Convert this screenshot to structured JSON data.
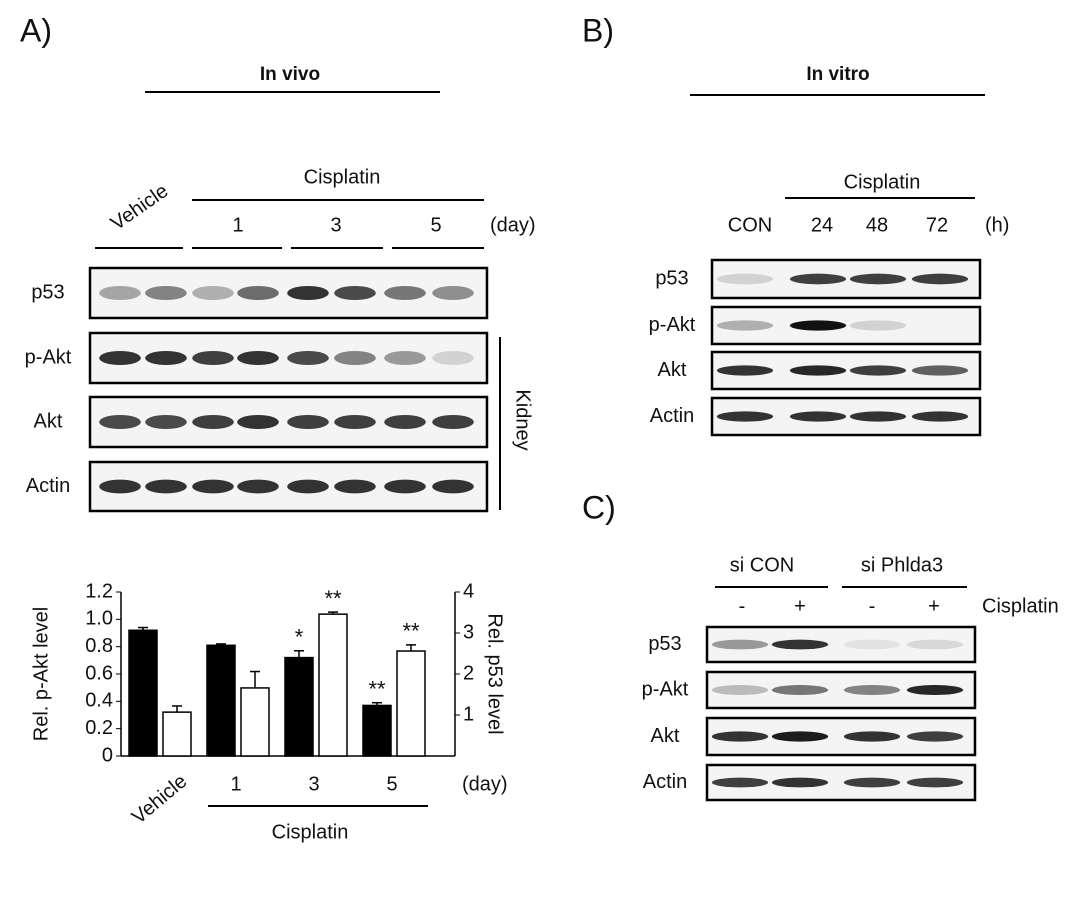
{
  "panels": {
    "a": {
      "label": "A)",
      "title": "In vivo",
      "control": "Vehicle",
      "treatment": "Cisplatin",
      "days": [
        "1",
        "3",
        "5"
      ],
      "unit": "(day)",
      "rows": [
        "p53",
        "p-Akt",
        "Akt",
        "Actin"
      ],
      "tissue": "Kidney"
    },
    "b": {
      "label": "B)",
      "title": "In vitro",
      "treatment": "Cisplatin",
      "columns": [
        "CON",
        "24",
        "48",
        "72"
      ],
      "unit": "(h)",
      "rows": [
        "p53",
        "p-Akt",
        "Akt",
        "Actin"
      ]
    },
    "c": {
      "label": "C)",
      "groups": [
        "si CON",
        "si Phlda3"
      ],
      "columns": [
        "-",
        "+",
        "-",
        "+"
      ],
      "treatment": "Cisplatin",
      "rows": [
        "p53",
        "p-Akt",
        "Akt",
        "Actin"
      ]
    }
  },
  "chart_data": {
    "type": "bar",
    "categories": [
      "Vehicle",
      "1",
      "3",
      "5"
    ],
    "unit": "(day)",
    "group_label": "Cisplatin",
    "ylabel": "Rel. p-Akt level",
    "y2label": "Rel. p53 level",
    "ylim": [
      0,
      1.2
    ],
    "yticks": [
      0,
      0.2,
      0.4,
      0.6,
      0.8,
      {
        "value": 1,
        "label": "1.0"
      },
      1.2
    ],
    "y2lim": [
      0,
      4
    ],
    "y2ticks": [
      1,
      2,
      3,
      4
    ],
    "series": [
      {
        "color": "#000000",
        "values": [
          0.92,
          0.81,
          0.72,
          0.37
        ],
        "errors": [
          0.02,
          0.01,
          0.05,
          0.02
        ],
        "significance": [
          null,
          null,
          "*",
          "**"
        ]
      },
      {
        "color": "#ffffff",
        "axis": "y2",
        "values": [
          1.07,
          1.66,
          3.46,
          2.56
        ],
        "errors": [
          0.15,
          0.4,
          0.05,
          0.15
        ],
        "significance": [
          null,
          null,
          "**",
          "**"
        ]
      }
    ]
  }
}
